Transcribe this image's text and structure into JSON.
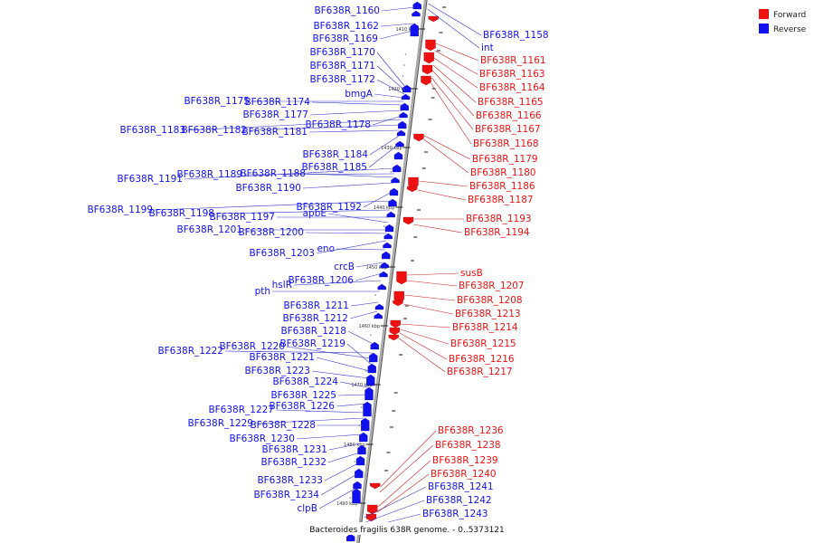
{
  "colors": {
    "forward": "#ee1111",
    "reverse": "#1111ee",
    "backbone": "#888888",
    "leader": "#3333cc",
    "leader_fwd": "#cc2222"
  },
  "legend": [
    {
      "label": "Forward",
      "color": "#ee1111",
      "icon": "red-square-icon"
    },
    {
      "label": "Reverse",
      "color": "#1111ee",
      "icon": "blue-square-icon"
    }
  ],
  "caption": "Bacteroides fragilis 638R genome. - 0..5373121",
  "tick_labels": [
    "1410 kbp",
    "1420 kbp",
    "1430 kbp",
    "1440 kbp",
    "1450 kbp",
    "1460 kbp",
    "1470 kbp",
    "1480 kbp",
    "1490 kbp"
  ],
  "reverse_genes": [
    "BF638R_1160",
    "BF638R_1162",
    "BF638R_1169",
    "BF638R_1170",
    "BF638R_1171",
    "BF638R_1172",
    "bmgA",
    "BF638R_1175",
    "BF638R_1174",
    "BF638R_1177",
    "BF638R_1178",
    "BF638R_1183",
    "BF638R_1182",
    "BF638R_1181",
    "BF638R_1184",
    "BF638R_1185",
    "BF638R_1191",
    "BF638R_1189",
    "BF638R_1188",
    "BF638R_1190",
    "BF638R_1192",
    "BF638R_1199",
    "BF638R_1198",
    "BF638R_1197",
    "apbE",
    "BF638R_1201",
    "BF638R_1200",
    "BF638R_1203",
    "eno",
    "crcB",
    "BF638R_1206",
    "hslR",
    "pth",
    "BF638R_1211",
    "BF638R_1212",
    "BF638R_1218",
    "BF638R_1222",
    "BF638R_1220",
    "BF638R_1219",
    "BF638R_1221",
    "BF638R_1223",
    "BF638R_1224",
    "BF638R_1225",
    "BF638R_1226",
    "BF638R_1227",
    "BF638R_1229",
    "BF638R_1228",
    "BF638R_1230",
    "BF638R_1231",
    "BF638R_1232",
    "BF638R_1233",
    "BF638R_1234",
    "clpB"
  ],
  "right_reverse_genes": [
    "BF638R_1158",
    "int",
    "BF638R_1241",
    "BF638R_1242",
    "BF638R_1243"
  ],
  "forward_genes": [
    "BF638R_1161",
    "BF638R_1163",
    "BF638R_1164",
    "BF638R_1165",
    "BF638R_1166",
    "BF638R_1167",
    "BF638R_1168",
    "BF638R_1179",
    "BF638R_1180",
    "BF638R_1186",
    "BF638R_1187",
    "BF638R_1193",
    "BF638R_1194",
    "susB",
    "BF638R_1207",
    "BF638R_1208",
    "BF638R_1213",
    "BF638R_1214",
    "BF638R_1215",
    "BF638R_1216",
    "BF638R_1217",
    "BF638R_1236",
    "BF638R_1238",
    "BF638R_1239",
    "BF638R_1240"
  ]
}
